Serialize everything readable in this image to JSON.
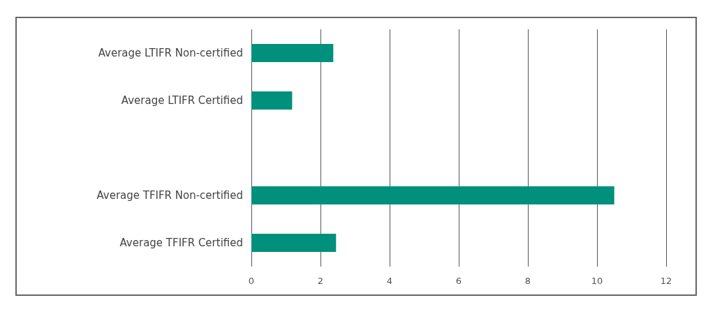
{
  "chart_data": {
    "type": "bar",
    "orientation": "horizontal",
    "categories": [
      "Average LTIFR Non-certified",
      "Average LTIFR Certified",
      null,
      "Average TFIFR Non-certified",
      "Average TFIFR Certified"
    ],
    "values": [
      2.37,
      1.18,
      null,
      10.5,
      2.45
    ],
    "color": "#00907c",
    "xlim": [
      0,
      12
    ],
    "xticks": [
      0,
      2,
      4,
      6,
      8,
      10,
      12
    ],
    "grid": "x"
  }
}
